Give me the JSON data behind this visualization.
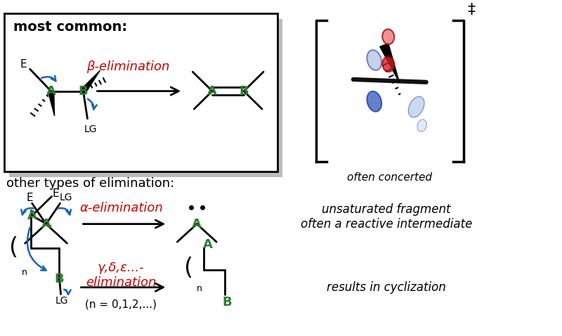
{
  "bg_color": "#ffffff",
  "green": "#2e7d32",
  "blue": "#1565c0",
  "red": "#cc0000",
  "black": "#000000",
  "most_common_label": "most common:",
  "beta_elim_label": "β-elimination",
  "other_types_label": "other types of elimination:",
  "alpha_elim_label": "α-elimination",
  "gamma_elim_label": "γ,δ,ε...-\nelimination",
  "gamma_sub_label": "(n = 0,1,2,...)",
  "often_concerted_label": "often concerted",
  "unsaturated_label": "unsaturated fragment\noften a reactive intermediate",
  "cyclization_label": "results in cyclization"
}
